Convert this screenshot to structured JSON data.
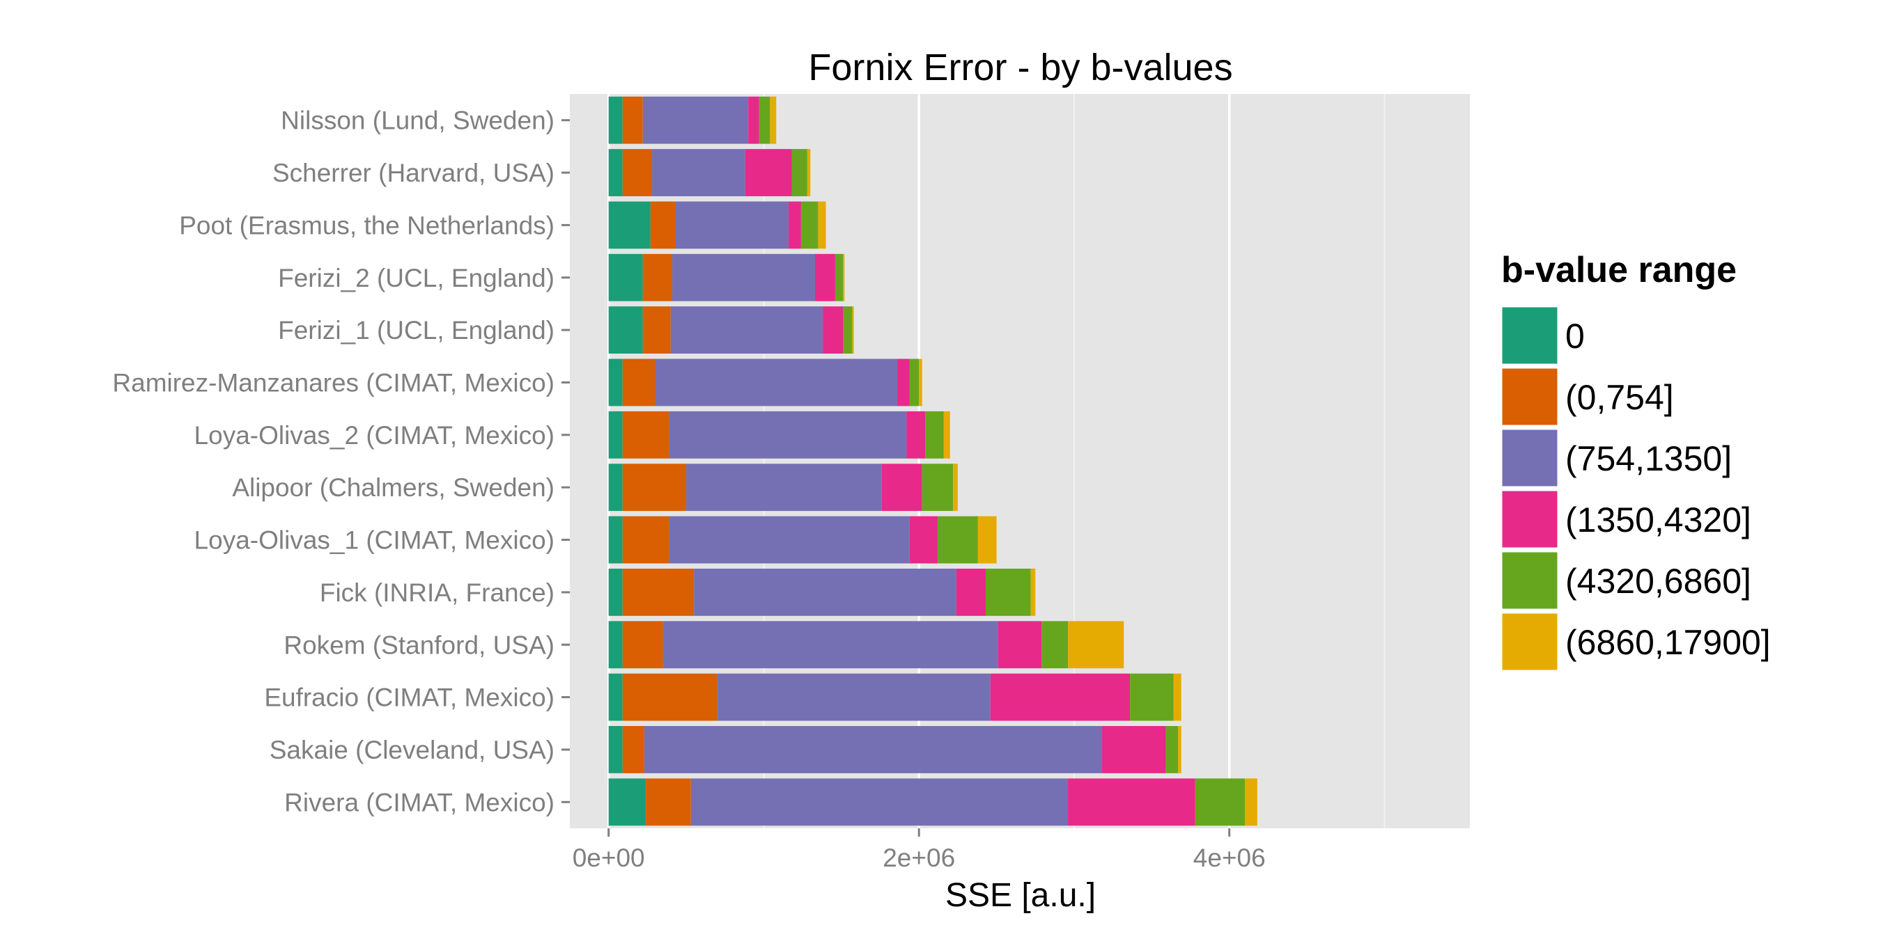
{
  "chart_data": {
    "type": "bar",
    "orientation": "horizontal",
    "stacked": true,
    "title": "Fornix Error - by b-values",
    "xlabel": "SSE [a.u.]",
    "ylabel": "",
    "xlim": [
      -250000,
      5550000
    ],
    "xticks": [
      {
        "value": 0,
        "label": "0e+00"
      },
      {
        "value": 2000000,
        "label": "2e+06"
      },
      {
        "value": 4000000,
        "label": "4e+06"
      }
    ],
    "grid": true,
    "legend": {
      "title": "b-value range",
      "position": "right"
    },
    "categories": [
      "Nilsson (Lund, Sweden)",
      "Scherrer (Harvard, USA)",
      "Poot (Erasmus, the Netherlands)",
      "Ferizi_2 (UCL, England)",
      "Ferizi_1 (UCL, England)",
      "Ramirez-Manzanares (CIMAT, Mexico)",
      "Loya-Olivas_2 (CIMAT, Mexico)",
      "Alipoor (Chalmers, Sweden)",
      "Loya-Olivas_1 (CIMAT, Mexico)",
      "Fick (INRIA, France)",
      "Rokem (Stanford, USA)",
      "Eufracio (CIMAT, Mexico)",
      "Sakaie (Cleveland, USA)",
      "Rivera (CIMAT, Mexico)"
    ],
    "series": [
      {
        "name": "0",
        "color": "#1b9e77",
        "values": [
          90000,
          90000,
          270000,
          220000,
          220000,
          90000,
          90000,
          90000,
          90000,
          90000,
          90000,
          90000,
          90000,
          240000
        ]
      },
      {
        "name": "(0,754]",
        "color": "#d95f02",
        "values": [
          130000,
          190000,
          160000,
          190000,
          180000,
          210000,
          300000,
          410000,
          300000,
          460000,
          260000,
          610000,
          140000,
          290000
        ]
      },
      {
        "name": "(754,1350]",
        "color": "#7570b3",
        "values": [
          680000,
          600000,
          730000,
          920000,
          980000,
          1560000,
          1530000,
          1260000,
          1550000,
          1690000,
          2160000,
          1760000,
          2950000,
          2430000
        ]
      },
      {
        "name": "(1350,4320]",
        "color": "#e7298a",
        "values": [
          70000,
          300000,
          80000,
          130000,
          130000,
          80000,
          120000,
          260000,
          180000,
          190000,
          280000,
          900000,
          410000,
          820000
        ]
      },
      {
        "name": "(4320,6860]",
        "color": "#66a61e",
        "values": [
          70000,
          100000,
          110000,
          50000,
          60000,
          60000,
          120000,
          200000,
          260000,
          290000,
          170000,
          280000,
          80000,
          320000
        ]
      },
      {
        "name": "(6860,17900]",
        "color": "#e6ab02",
        "values": [
          40000,
          20000,
          50000,
          10000,
          10000,
          20000,
          40000,
          30000,
          120000,
          30000,
          360000,
          50000,
          20000,
          80000
        ]
      }
    ]
  }
}
